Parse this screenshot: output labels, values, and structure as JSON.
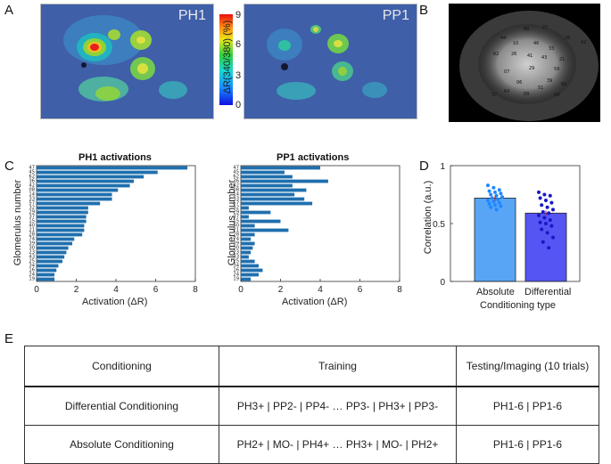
{
  "panel_letters": {
    "a": "A",
    "b": "B",
    "c": "C",
    "d": "D",
    "e": "E"
  },
  "imaging": {
    "ph1_label": "PH1",
    "pp1_label": "PP1",
    "colorbar_title": "ΔR(340/380) (%)",
    "colorbar_ticks": [
      "9",
      "6",
      "3",
      "0"
    ],
    "glomeruli_ids": [
      "68",
      "27",
      "44",
      "28",
      "42",
      "10",
      "46",
      "33",
      "62",
      "26",
      "41",
      "43",
      "21",
      "59",
      "07",
      "29",
      "39",
      "06",
      "51",
      "60",
      "64",
      "09",
      "37",
      "04"
    ]
  },
  "colors": {
    "bar": "#1f6fae",
    "absolute": "#3b95f5",
    "differential": "#3737f2"
  },
  "chart_data": [
    {
      "type": "bar",
      "orientation": "horizontal",
      "title": "PH1 activations",
      "xlabel": "Activation (ΔR)",
      "ylabel": "Glomerulus number",
      "xlim": [
        0,
        8
      ],
      "xticks": [
        "0",
        "2",
        "4",
        "6",
        "8"
      ],
      "categories": [
        "47",
        "45",
        "62",
        "36",
        "42",
        "08",
        "14",
        "33",
        "57",
        "32",
        "29",
        "37",
        "15",
        "40",
        "21",
        "28",
        "74",
        "39",
        "30",
        "23",
        "43",
        "25",
        "34",
        "16",
        "24",
        "19"
      ],
      "values": [
        7.6,
        6.1,
        5.4,
        4.9,
        4.7,
        4.1,
        3.8,
        3.8,
        3.2,
        2.6,
        2.6,
        2.5,
        2.5,
        2.4,
        2.4,
        2.3,
        1.9,
        1.8,
        1.6,
        1.5,
        1.4,
        1.3,
        1.1,
        1.0,
        0.9,
        0.9
      ]
    },
    {
      "type": "bar",
      "orientation": "horizontal",
      "title": "PP1 activations",
      "xlabel": "Activation (ΔR)",
      "ylabel": "Glomerulus number",
      "xlim": [
        0,
        8
      ],
      "xticks": [
        "0",
        "2",
        "4",
        "6",
        "8"
      ],
      "categories": [
        "47",
        "45",
        "62",
        "36",
        "42",
        "08",
        "14",
        "33",
        "57",
        "32",
        "29",
        "37",
        "15",
        "40",
        "21",
        "28",
        "74",
        "39",
        "30",
        "23",
        "43",
        "25",
        "34",
        "16",
        "24",
        "19"
      ],
      "values": [
        4.0,
        2.2,
        2.6,
        4.4,
        2.6,
        3.3,
        2.7,
        3.2,
        3.6,
        0.4,
        1.5,
        0.4,
        2.0,
        0.7,
        2.4,
        0.7,
        0.5,
        0.7,
        0.6,
        0.5,
        0.4,
        0.7,
        0.9,
        1.1,
        0.9,
        0.5
      ]
    },
    {
      "type": "bar",
      "title": "",
      "xlabel": "Conditioning type",
      "ylabel": "Correlation (a.u.)",
      "ylim": [
        0,
        1
      ],
      "yticks": [
        "0",
        "0.5",
        "1"
      ],
      "categories": [
        "Absolute",
        "Differential"
      ],
      "values": [
        0.72,
        0.59
      ],
      "points": [
        [
          0.83,
          0.81,
          0.79,
          0.78,
          0.77,
          0.76,
          0.75,
          0.74,
          0.73,
          0.72,
          0.71,
          0.7,
          0.69,
          0.68,
          0.67,
          0.66,
          0.65,
          0.64,
          0.62
        ],
        [
          0.77,
          0.75,
          0.74,
          0.72,
          0.7,
          0.68,
          0.66,
          0.64,
          0.62,
          0.6,
          0.59,
          0.57,
          0.55,
          0.53,
          0.51,
          0.5,
          0.48,
          0.45,
          0.42,
          0.38,
          0.34,
          0.29
        ]
      ]
    }
  ],
  "table": {
    "headers": [
      "Conditioning",
      "Training",
      "Testing/Imaging (10 trials)"
    ],
    "rows": [
      {
        "name": "Differential Conditioning",
        "training": "PH3+ | PP2- | PP4- … PP3- | PH3+ | PP3-",
        "testing": "PH1-6 | PP1-6"
      },
      {
        "name": "Absolute Conditioning",
        "training": "PH2+ | MO- | PH4+ … PH3+ | MO- | PH2+",
        "testing": "PH1-6 | PP1-6"
      }
    ]
  }
}
